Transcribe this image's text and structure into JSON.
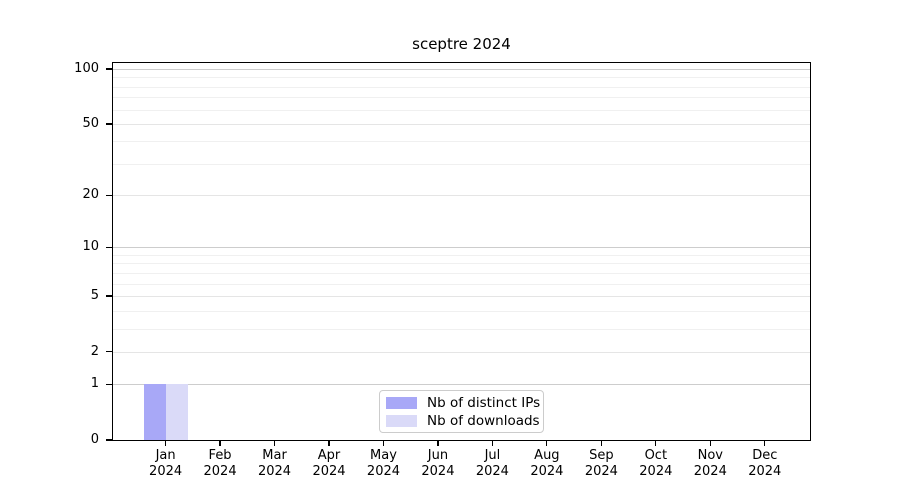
{
  "chart_data": {
    "type": "bar",
    "title": "sceptre 2024",
    "categories": [
      "Jan 2024",
      "Feb 2024",
      "Mar 2024",
      "Apr 2024",
      "May 2024",
      "Jun 2024",
      "Jul 2024",
      "Aug 2024",
      "Sep 2024",
      "Oct 2024",
      "Nov 2024",
      "Dec 2024"
    ],
    "series": [
      {
        "name": "Nb of distinct IPs",
        "color": "#a8a8f7",
        "values": [
          1,
          0,
          0,
          0,
          0,
          0,
          0,
          0,
          0,
          0,
          0,
          0
        ]
      },
      {
        "name": "Nb of downloads",
        "color": "#dadaf8",
        "values": [
          1,
          0,
          0,
          0,
          0,
          0,
          0,
          0,
          0,
          0,
          0,
          0
        ]
      }
    ],
    "xlabel": "",
    "ylabel": "",
    "yscale": "log1p",
    "ylim": [
      0,
      110
    ],
    "y_major_ticks": [
      0,
      1,
      2,
      5,
      10,
      20,
      50,
      100
    ],
    "y_tick_labels": [
      "0",
      "1",
      "2",
      "5",
      "10",
      "20",
      "50",
      "100"
    ],
    "y_minor_gridlines": [
      3,
      4,
      6,
      7,
      8,
      9,
      30,
      40,
      60,
      70,
      80,
      90
    ],
    "grid": true,
    "legend_position": "lower center"
  },
  "colors": {
    "grid_decade": "#cdcdcd",
    "grid_mid": "#e5e5e5",
    "grid_minor": "#f0f0f0",
    "spine": "#000000",
    "background": "#ffffff",
    "legend_border": "#cccccc",
    "text": "#000000"
  }
}
